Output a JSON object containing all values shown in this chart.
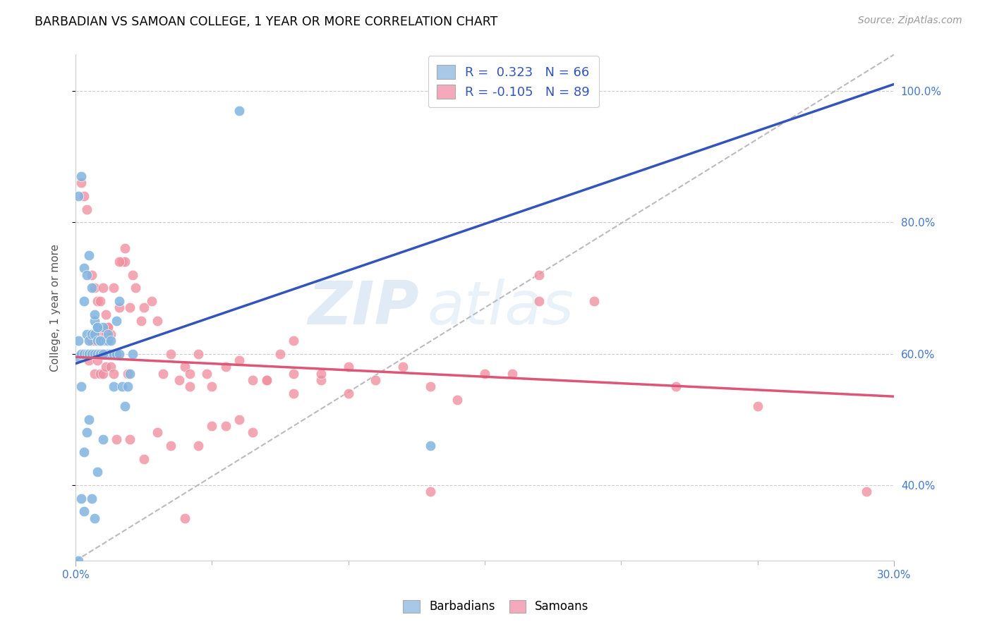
{
  "title": "BARBADIAN VS SAMOAN COLLEGE, 1 YEAR OR MORE CORRELATION CHART",
  "source": "Source: ZipAtlas.com",
  "ylabel": "College, 1 year or more",
  "legend_entries": [
    {
      "label": "R =  0.323   N = 66",
      "color": "#a8c8e8"
    },
    {
      "label": "R = -0.105   N = 89",
      "color": "#f4aabc"
    }
  ],
  "legend_labels": [
    "Barbadians",
    "Samoans"
  ],
  "blue_color": "#82b4e0",
  "pink_color": "#f090a0",
  "line_blue": "#3355bb",
  "line_pink": "#dd5577",
  "line_dash_color": "#bbbbbb",
  "watermark_color": "#c8dcf0",
  "xmin": 0.0,
  "xmax": 0.3,
  "ymin": 0.285,
  "ymax": 1.055,
  "blue_line_x0": 0.0,
  "blue_line_y0": 0.585,
  "blue_line_x1": 0.3,
  "blue_line_y1": 1.01,
  "pink_line_x0": 0.0,
  "pink_line_y0": 0.595,
  "pink_line_x1": 0.3,
  "pink_line_y1": 0.535,
  "blue_scatter_x": [
    0.001,
    0.001,
    0.001,
    0.002,
    0.002,
    0.003,
    0.003,
    0.004,
    0.004,
    0.005,
    0.005,
    0.005,
    0.006,
    0.006,
    0.006,
    0.007,
    0.007,
    0.007,
    0.008,
    0.008,
    0.008,
    0.009,
    0.009,
    0.009,
    0.01,
    0.01,
    0.01,
    0.011,
    0.011,
    0.012,
    0.012,
    0.012,
    0.013,
    0.013,
    0.014,
    0.014,
    0.015,
    0.015,
    0.016,
    0.016,
    0.017,
    0.018,
    0.019,
    0.02,
    0.021,
    0.003,
    0.004,
    0.005,
    0.006,
    0.007,
    0.008,
    0.009,
    0.01,
    0.002,
    0.003,
    0.06,
    0.001,
    0.13,
    0.002,
    0.003,
    0.004,
    0.005,
    0.006,
    0.007,
    0.008,
    0.01
  ],
  "blue_scatter_y": [
    0.595,
    0.62,
    0.285,
    0.6,
    0.87,
    0.6,
    0.68,
    0.6,
    0.63,
    0.6,
    0.62,
    0.6,
    0.6,
    0.63,
    0.6,
    0.63,
    0.65,
    0.6,
    0.6,
    0.62,
    0.64,
    0.6,
    0.62,
    0.6,
    0.6,
    0.62,
    0.64,
    0.6,
    0.62,
    0.6,
    0.62,
    0.63,
    0.6,
    0.62,
    0.6,
    0.55,
    0.6,
    0.65,
    0.6,
    0.68,
    0.55,
    0.52,
    0.55,
    0.57,
    0.6,
    0.73,
    0.72,
    0.75,
    0.7,
    0.66,
    0.64,
    0.62,
    0.6,
    0.38,
    0.36,
    0.97,
    0.84,
    0.46,
    0.55,
    0.45,
    0.48,
    0.5,
    0.38,
    0.35,
    0.42,
    0.47
  ],
  "pink_scatter_x": [
    0.002,
    0.003,
    0.004,
    0.005,
    0.006,
    0.006,
    0.007,
    0.007,
    0.008,
    0.008,
    0.009,
    0.009,
    0.01,
    0.01,
    0.011,
    0.011,
    0.012,
    0.012,
    0.013,
    0.013,
    0.014,
    0.015,
    0.016,
    0.017,
    0.018,
    0.019,
    0.02,
    0.021,
    0.022,
    0.024,
    0.025,
    0.028,
    0.03,
    0.032,
    0.035,
    0.04,
    0.042,
    0.045,
    0.048,
    0.05,
    0.055,
    0.06,
    0.065,
    0.07,
    0.075,
    0.08,
    0.09,
    0.1,
    0.11,
    0.12,
    0.13,
    0.14,
    0.15,
    0.16,
    0.006,
    0.007,
    0.008,
    0.009,
    0.01,
    0.011,
    0.012,
    0.014,
    0.016,
    0.018,
    0.07,
    0.08,
    0.1,
    0.05,
    0.06,
    0.038,
    0.042,
    0.25,
    0.17,
    0.19,
    0.22,
    0.02,
    0.03,
    0.015,
    0.025,
    0.035,
    0.045,
    0.055,
    0.065,
    0.08,
    0.09,
    0.13,
    0.29,
    0.17,
    0.04
  ],
  "pink_scatter_y": [
    0.86,
    0.84,
    0.82,
    0.59,
    0.62,
    0.6,
    0.62,
    0.57,
    0.63,
    0.59,
    0.62,
    0.57,
    0.6,
    0.57,
    0.63,
    0.58,
    0.6,
    0.64,
    0.58,
    0.63,
    0.57,
    0.6,
    0.67,
    0.74,
    0.74,
    0.57,
    0.67,
    0.72,
    0.7,
    0.65,
    0.67,
    0.68,
    0.65,
    0.57,
    0.6,
    0.58,
    0.57,
    0.6,
    0.57,
    0.55,
    0.58,
    0.59,
    0.56,
    0.56,
    0.6,
    0.62,
    0.56,
    0.54,
    0.56,
    0.58,
    0.55,
    0.53,
    0.57,
    0.57,
    0.72,
    0.7,
    0.68,
    0.68,
    0.7,
    0.66,
    0.64,
    0.7,
    0.74,
    0.76,
    0.56,
    0.54,
    0.58,
    0.49,
    0.5,
    0.56,
    0.55,
    0.52,
    0.68,
    0.68,
    0.55,
    0.47,
    0.48,
    0.47,
    0.44,
    0.46,
    0.46,
    0.49,
    0.48,
    0.57,
    0.57,
    0.39,
    0.39,
    0.72,
    0.35
  ]
}
